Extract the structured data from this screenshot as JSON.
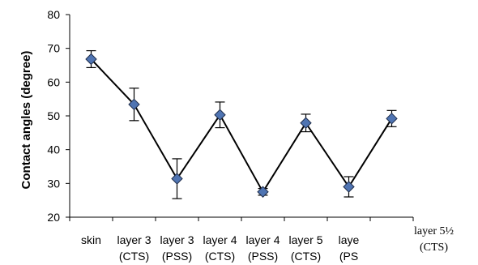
{
  "chart_data": {
    "type": "line",
    "title": "",
    "xlabel": "",
    "ylabel": "Contact angles (degree)",
    "ylim": [
      20,
      80
    ],
    "yticks": [
      20,
      30,
      40,
      50,
      60,
      70,
      80
    ],
    "grid": false,
    "legend": "none",
    "categories": [
      [
        "skin"
      ],
      [
        "layer 3",
        "(CTS)"
      ],
      [
        "layer 3",
        "(PSS)"
      ],
      [
        "layer 4",
        "(CTS)"
      ],
      [
        "layer 4",
        "(PSS)"
      ],
      [
        "layer 5",
        "(CTS)"
      ],
      [
        "laye",
        "(PS"
      ],
      [
        "layer 5½",
        "(CTS)"
      ]
    ],
    "series": [
      {
        "values": [
          66.8,
          53.4,
          31.4,
          50.3,
          27.5,
          47.9,
          29.0,
          49.2
        ],
        "errors": [
          2.5,
          4.8,
          5.9,
          3.8,
          1.0,
          2.6,
          3.0,
          2.4
        ],
        "marker_color": "#4f74b2"
      }
    ]
  }
}
